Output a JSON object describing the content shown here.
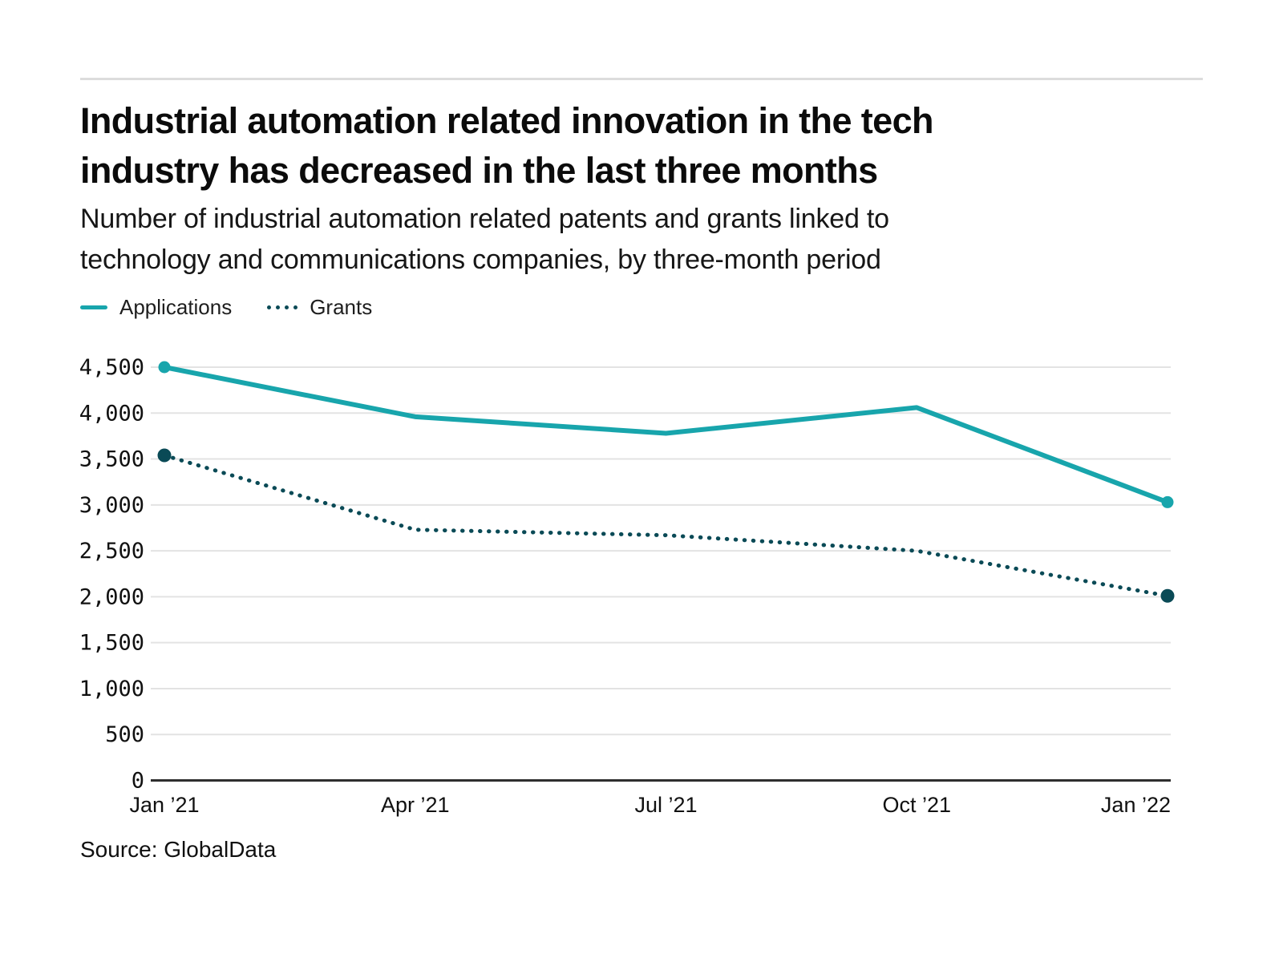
{
  "page": {
    "background": "#ffffff",
    "divider_color": "#dcdcdc"
  },
  "header": {
    "title_lines": [
      "Industrial automation related innovation in the tech",
      "industry has decreased in the last three months"
    ],
    "subtitle_lines": [
      "Number of industrial automation related patents and grants linked to",
      "technology and communications companies, by three-month period"
    ]
  },
  "legend": {
    "position": "top-left",
    "items": [
      {
        "label": "Applications",
        "style": "solid",
        "color": "#18a5ac"
      },
      {
        "label": "Grants",
        "style": "dotted",
        "color": "#0a4a56"
      }
    ]
  },
  "chart_data": {
    "type": "line",
    "title": "Industrial automation related innovation in the tech industry has decreased in the last three months",
    "subtitle": "Number of industrial automation related patents and grants linked to technology and communications companies, by three-month period",
    "categories": [
      "Jan ’21",
      "Apr ’21",
      "Jul ’21",
      "Oct ’21",
      "Jan ’22"
    ],
    "series": [
      {
        "name": "Applications",
        "style": "solid",
        "color": "#18a5ac",
        "values": [
          4500,
          3960,
          3780,
          4060,
          3030
        ],
        "endpoint_markers": true
      },
      {
        "name": "Grants",
        "style": "dotted",
        "color": "#0a4a56",
        "values": [
          3540,
          2730,
          2670,
          2500,
          2010
        ],
        "endpoint_markers": true
      }
    ],
    "xlabel": "",
    "ylabel": "",
    "ylim": [
      0,
      4500
    ],
    "ytick_step": 500,
    "ytick_labels": [
      "0",
      "500",
      "1,000",
      "1,500",
      "2,000",
      "2,500",
      "3,000",
      "3,500",
      "4,000",
      "4,500"
    ],
    "grid": "horizontal",
    "legend_position": "top-left",
    "colors": {
      "grid": "#e3e3e3",
      "axis": "#2e2e2e",
      "tick_text": "#111111"
    }
  },
  "footer": {
    "source": "Source: GlobalData"
  }
}
